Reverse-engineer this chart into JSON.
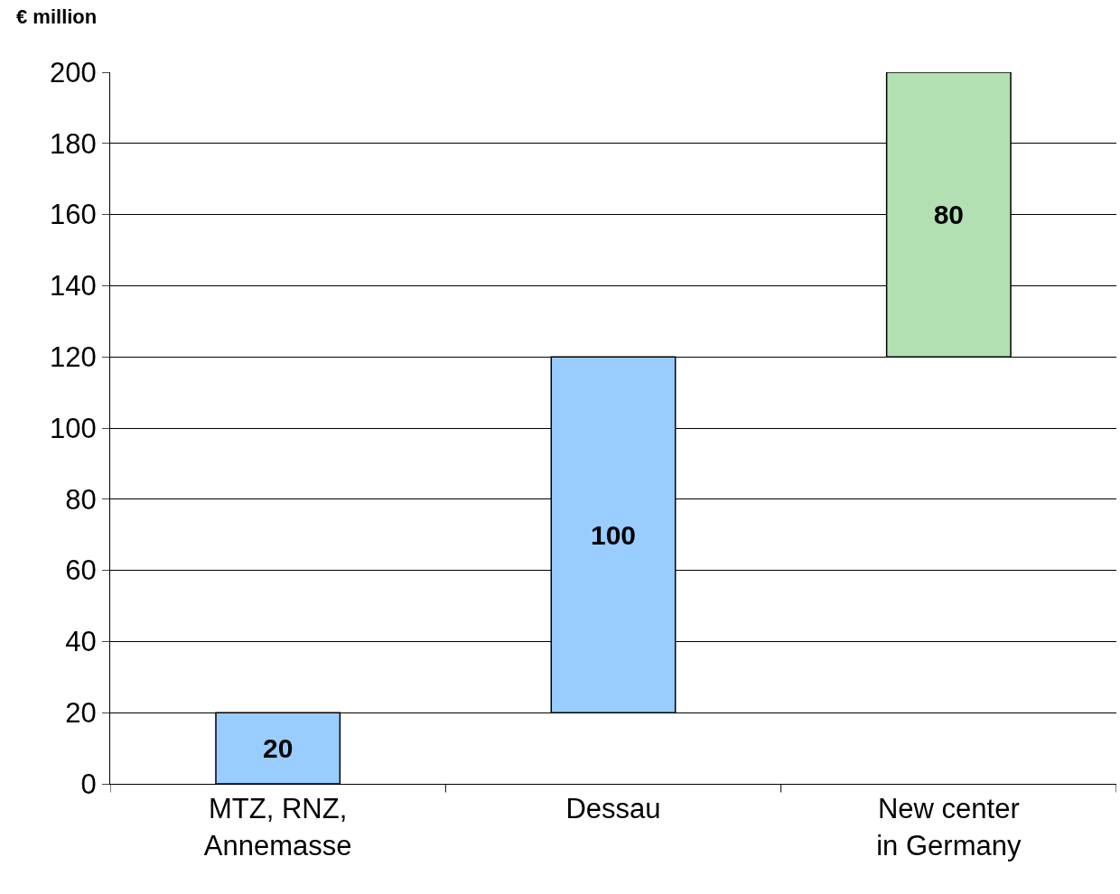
{
  "chart_data": {
    "type": "bar",
    "ylabel": "€ million",
    "categories": [
      "MTZ, RNZ,\nAnnemasse",
      "Dessau",
      "New center\nin Germany"
    ],
    "values": [
      20,
      100,
      80
    ],
    "base": [
      0,
      20,
      120
    ],
    "colors": [
      "#99ccff",
      "#99ccff",
      "#b3e0b3"
    ],
    "ylim": [
      0,
      200
    ],
    "yticks": [
      0,
      20,
      40,
      60,
      80,
      100,
      120,
      140,
      160,
      180,
      200
    ],
    "grid": "y",
    "data_labels": true,
    "legend": false
  }
}
